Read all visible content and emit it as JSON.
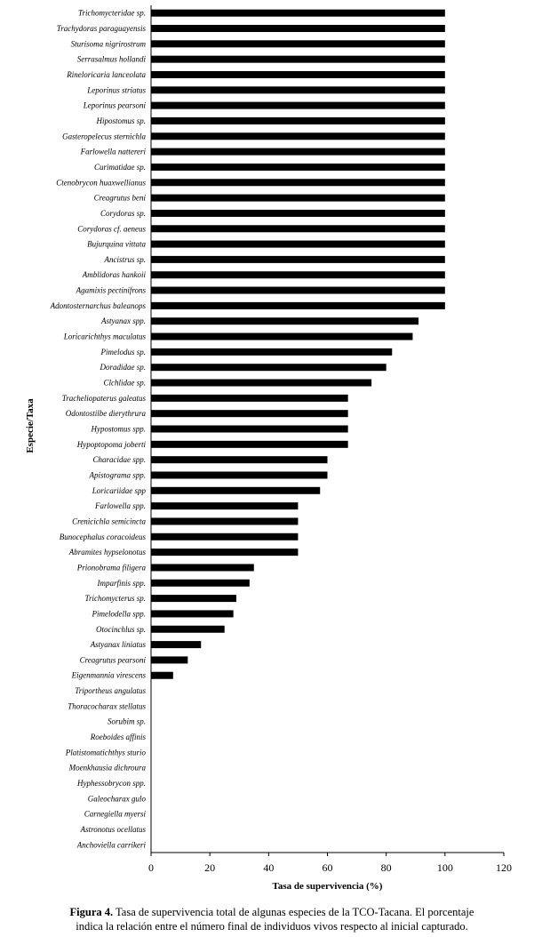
{
  "chart_data": {
    "type": "bar",
    "orientation": "horizontal",
    "xlabel": "Tasa de supervivencia (%)",
    "ylabel": "Especie/Taxa",
    "xlim": [
      0,
      120
    ],
    "xticks": [
      "0",
      "20",
      "40",
      "60",
      "80",
      "100",
      "120"
    ],
    "categories": [
      "Trichomycteridae sp.",
      "Trachydoras paraguayensis",
      "Sturisoma nigrirostrum",
      "Serrasalmus hollandi",
      "Rineloricaria lanceolata",
      "Leporinus striatus",
      "Leporinus pearsoni",
      "Hipostomus sp.",
      "Gasteropelecus sternichla",
      "Farlowella nattereri",
      "Curimatidae sp.",
      "Ctenobrycon huaxwellianus",
      "Creagrutus beni",
      "Corydoras sp.",
      "Corydoras cf. aeneus",
      "Bujurquina vittata",
      "Ancistrus sp.",
      "Amblidoras hankoii",
      "Agamixis pectinifrons",
      "Adontosternarchus baleanops",
      "Astyanax spp.",
      "Loricarichthys maculatus",
      "Pimelodus sp.",
      "Doradidae sp.",
      "Clchlidae sp.",
      "Tracheliopaterus galeatus",
      "Odontostilbe dierythrura",
      "Hypostomus spp.",
      "Hypoptopoma joberti",
      "Characidae spp.",
      "Apistograma spp.",
      "Loricariidae spp",
      "Farlowella spp.",
      "Crenicichla semicincta",
      "Bunocephalus coracoideus",
      "Abramites hypselonotus",
      "Prionobrama filigera",
      "Imparfinis spp.",
      "Trichomycterus sp.",
      "Pimelodella spp.",
      "Otocinchlus sp.",
      "Astyanax liniatus",
      "Creagrutus pearsoni",
      "Eigenmannia virescens",
      "Triportheus angulatus",
      "Thoracocharax stellatus",
      "Sorubim sp.",
      "Roeboides affinis",
      "Platistomatichthys sturio",
      "Moenkhausia dichroura",
      "Hyphessobrycon spp.",
      "Galeocharax gulo",
      "Carnegiella myersi",
      "Astronotus ocellatus",
      "Anchoviella carrikeri"
    ],
    "values": [
      100,
      100,
      100,
      100,
      100,
      100,
      100,
      100,
      100,
      100,
      100,
      100,
      100,
      100,
      100,
      100,
      100,
      100,
      100,
      100,
      91,
      89,
      82,
      80,
      75,
      67,
      67,
      67,
      67,
      60,
      60,
      57.5,
      50,
      50,
      50,
      50,
      35,
      33.5,
      29,
      28,
      25,
      17,
      12.5,
      7.5,
      0,
      0,
      0,
      0,
      0,
      0,
      0,
      0,
      0,
      0,
      0
    ],
    "bar_color": "#000000",
    "grid": false,
    "legend": "none"
  },
  "caption": {
    "label": "Figura 4.",
    "line1": " Tasa de supervivencia total de algunas especies de la TCO-Tacana. El porcentaje",
    "line2": "indica la relación entre el número final de individuos vivos respecto al inicial capturado."
  }
}
